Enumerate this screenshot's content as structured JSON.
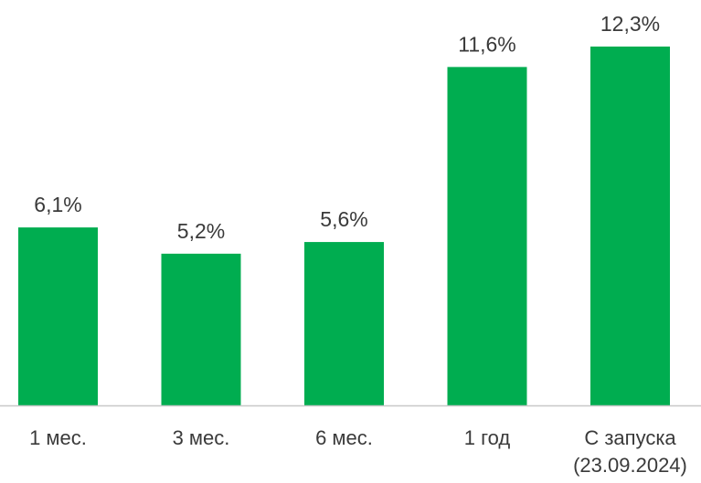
{
  "chart_data": {
    "type": "bar",
    "title": "",
    "xlabel": "",
    "ylabel": "",
    "categories": [
      [
        "1 мес."
      ],
      [
        "3 мес."
      ],
      [
        "6 мес."
      ],
      [
        "1 год"
      ],
      [
        "С запуска",
        "(23.09.2024)"
      ]
    ],
    "values": [
      6.1,
      5.2,
      5.6,
      11.6,
      12.3
    ],
    "value_labels": [
      "6,1%",
      "5,2%",
      "5,6%",
      "11,6%",
      "12,3%"
    ],
    "ylim": [
      0,
      13.5
    ],
    "grid": false,
    "legend": "none"
  },
  "colors": {
    "bar": "#00AD50",
    "text": "#3a3a3a",
    "axis": "#c8c8c8"
  }
}
